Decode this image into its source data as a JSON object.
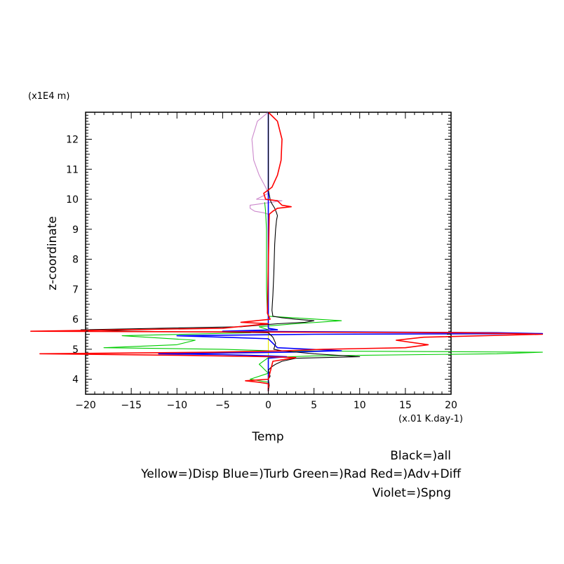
{
  "chart_data": {
    "type": "line",
    "title": "",
    "xlabel": "Temp",
    "xunit": "(x.01 K.day-1)",
    "ylabel": "z-coordinate",
    "yunit": "(x1E4 m)",
    "xlim": [
      -20,
      20
    ],
    "ylim": [
      3.5,
      12.9
    ],
    "xticks": [
      -20,
      -15,
      -10,
      -5,
      0,
      5,
      10,
      15,
      20
    ],
    "yticks": [
      4,
      5,
      6,
      7,
      8,
      9,
      10,
      11,
      12
    ],
    "grid": false,
    "legend_lines": [
      "Black=)all",
      "Yellow=)Disp Blue=)Turb Green=)Rad Red=)Adv+Diff",
      "Violet=)Spng"
    ],
    "series": [
      {
        "name": "all",
        "color": "#000000",
        "points": [
          [
            0,
            12.9
          ],
          [
            0,
            11.0
          ],
          [
            0,
            10.3
          ],
          [
            0.2,
            10.0
          ],
          [
            0.3,
            9.9
          ],
          [
            0.5,
            9.8
          ],
          [
            0.7,
            9.7
          ],
          [
            0.9,
            9.55
          ],
          [
            1.0,
            9.45
          ],
          [
            0.9,
            9.3
          ],
          [
            0.8,
            9.0
          ],
          [
            0.7,
            8.5
          ],
          [
            0.6,
            7.5
          ],
          [
            0.5,
            6.8
          ],
          [
            0.4,
            6.3
          ],
          [
            0.5,
            6.1
          ],
          [
            1.5,
            6.05
          ],
          [
            3,
            6.0
          ],
          [
            5,
            5.95
          ],
          [
            4,
            5.9
          ],
          [
            1,
            5.85
          ],
          [
            -3,
            5.75
          ],
          [
            -20.5,
            5.65
          ],
          [
            -15,
            5.6
          ],
          [
            -5,
            5.57
          ],
          [
            0,
            5.55
          ],
          [
            0.5,
            5.4
          ],
          [
            0.8,
            5.2
          ],
          [
            0.6,
            5.0
          ],
          [
            1.5,
            4.95
          ],
          [
            5,
            4.85
          ],
          [
            10,
            4.75
          ],
          [
            3,
            4.7
          ],
          [
            1.5,
            4.6
          ],
          [
            0.8,
            4.5
          ],
          [
            0.3,
            4.4
          ],
          [
            0,
            4.3
          ],
          [
            0.2,
            4.1
          ],
          [
            0,
            4.0
          ],
          [
            0.1,
            3.8
          ],
          [
            0,
            3.6
          ]
        ]
      },
      {
        "name": "Adv+Diff",
        "color": "#ff0000",
        "points": [
          [
            0,
            12.9
          ],
          [
            1.0,
            12.6
          ],
          [
            1.5,
            12.0
          ],
          [
            1.4,
            11.3
          ],
          [
            1.0,
            10.8
          ],
          [
            0.4,
            10.4
          ],
          [
            -0.5,
            10.2
          ],
          [
            -0.3,
            10.0
          ],
          [
            1.0,
            9.95
          ],
          [
            1.5,
            9.8
          ],
          [
            2.5,
            9.75
          ],
          [
            1.0,
            9.7
          ],
          [
            0.5,
            9.6
          ],
          [
            0.1,
            9.5
          ],
          [
            -0.1,
            6.2
          ],
          [
            0.2,
            6.0
          ],
          [
            -3,
            5.9
          ],
          [
            0,
            5.85
          ],
          [
            -5,
            5.7
          ],
          [
            -26,
            5.6
          ],
          [
            22,
            5.55
          ],
          [
            30,
            5.5
          ],
          [
            17,
            5.4
          ],
          [
            14,
            5.3
          ],
          [
            17.5,
            5.15
          ],
          [
            15,
            5.05
          ],
          [
            6,
            5.0
          ],
          [
            2,
            4.95
          ],
          [
            -6,
            4.9
          ],
          [
            -25,
            4.85
          ],
          [
            -10,
            4.8
          ],
          [
            0,
            4.75
          ],
          [
            3,
            4.72
          ],
          [
            0.5,
            4.6
          ],
          [
            0,
            4.0
          ],
          [
            -2.5,
            3.95
          ],
          [
            -1,
            3.9
          ],
          [
            0,
            3.85
          ],
          [
            0,
            3.6
          ]
        ]
      },
      {
        "name": "Turb",
        "color": "#0000ff",
        "points": [
          [
            0,
            12.9
          ],
          [
            0,
            6.2
          ],
          [
            0,
            5.7
          ],
          [
            1,
            5.65
          ],
          [
            -5,
            5.6
          ],
          [
            25,
            5.55
          ],
          [
            30,
            5.52
          ],
          [
            5,
            5.5
          ],
          [
            -10,
            5.45
          ],
          [
            -5,
            5.4
          ],
          [
            0,
            5.35
          ],
          [
            0.5,
            5.2
          ],
          [
            1,
            5.05
          ],
          [
            8,
            4.95
          ],
          [
            2,
            4.9
          ],
          [
            -12,
            4.85
          ],
          [
            -5,
            4.82
          ],
          [
            0,
            4.78
          ],
          [
            2,
            4.75
          ],
          [
            0,
            4.7
          ],
          [
            0,
            3.6
          ]
        ]
      },
      {
        "name": "Rad",
        "color": "#00cc00",
        "points": [
          [
            -0.4,
            9.9
          ],
          [
            -0.3,
            9.6
          ],
          [
            -0.2,
            9.0
          ],
          [
            -0.2,
            7.0
          ],
          [
            -0.1,
            6.2
          ],
          [
            0,
            6.1
          ],
          [
            8,
            5.95
          ],
          [
            3,
            5.85
          ],
          [
            -1,
            5.75
          ],
          [
            0,
            5.65
          ],
          [
            -2,
            5.55
          ],
          [
            -16,
            5.45
          ],
          [
            -8,
            5.3
          ],
          [
            -10,
            5.15
          ],
          [
            -18,
            5.05
          ],
          [
            -5,
            5.0
          ],
          [
            0,
            4.95
          ],
          [
            30,
            4.9
          ],
          [
            25,
            4.85
          ],
          [
            5,
            4.78
          ],
          [
            0,
            4.72
          ],
          [
            -1,
            4.5
          ],
          [
            0,
            4.2
          ],
          [
            -2,
            4.0
          ],
          [
            0,
            3.9
          ]
        ]
      },
      {
        "name": "Disp",
        "color": "#e6e600",
        "points": [
          [
            0,
            12.9
          ],
          [
            0,
            3.6
          ]
        ]
      },
      {
        "name": "Spng",
        "color": "#cc88cc",
        "points": [
          [
            0,
            12.9
          ],
          [
            -1.2,
            12.6
          ],
          [
            -1.8,
            12.0
          ],
          [
            -1.6,
            11.3
          ],
          [
            -1.0,
            10.8
          ],
          [
            -0.3,
            10.4
          ],
          [
            0,
            10.2
          ],
          [
            -1.3,
            10.0
          ],
          [
            1.5,
            9.95
          ],
          [
            -2,
            9.8
          ],
          [
            -2,
            9.7
          ],
          [
            -1.5,
            9.6
          ],
          [
            -0.5,
            9.55
          ],
          [
            0,
            9.5
          ]
        ]
      }
    ]
  }
}
